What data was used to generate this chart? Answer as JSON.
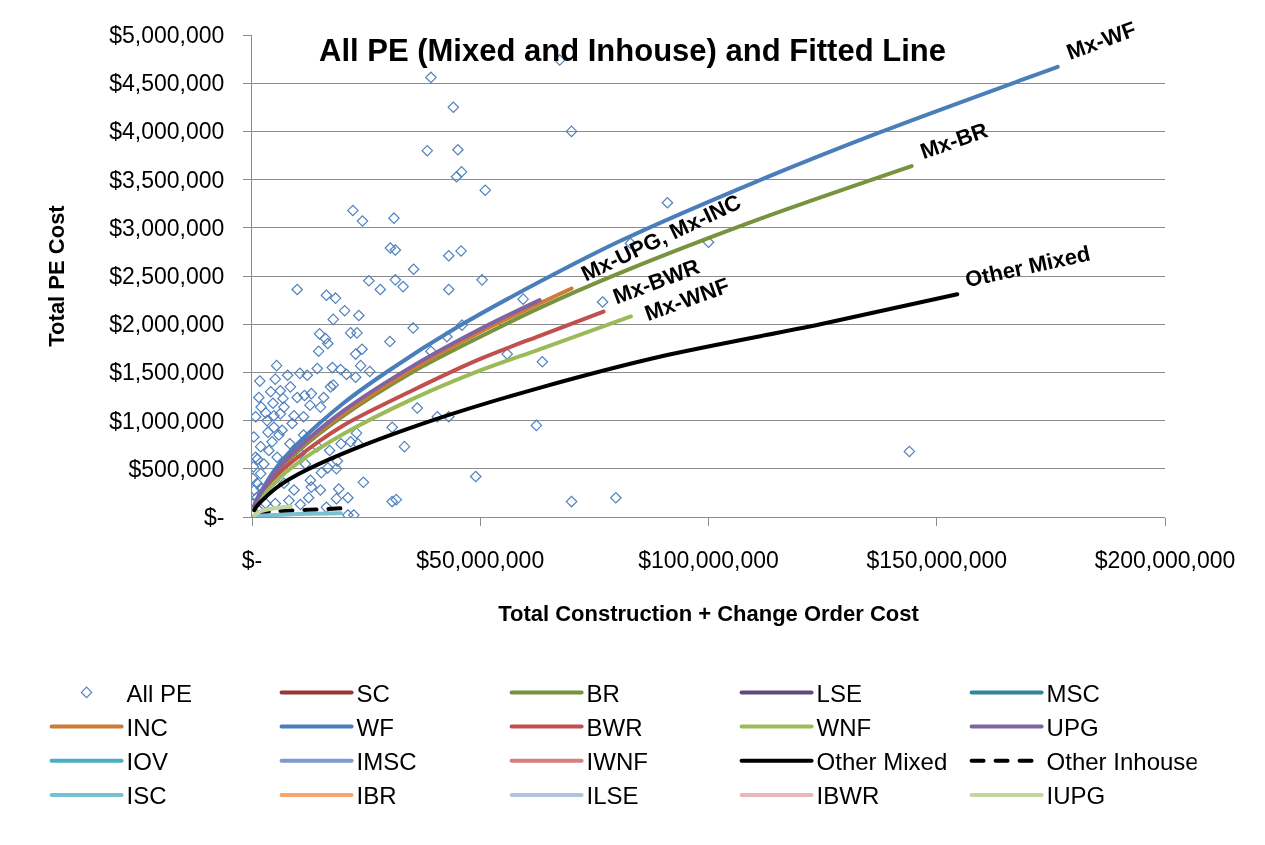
{
  "chart_data": {
    "type": "line",
    "title": "All PE (Mixed and Inhouse) and Fitted Line",
    "xlabel": "Total Construction + Change Order Cost",
    "ylabel": "Total PE Cost",
    "xlim": [
      0,
      200000000
    ],
    "ylim": [
      0,
      5000000
    ],
    "xticks": [
      {
        "value": 0,
        "label": "$-"
      },
      {
        "value": 50000000,
        "label": "$50,000,000"
      },
      {
        "value": 100000000,
        "label": "$100,000,000"
      },
      {
        "value": 150000000,
        "label": "$150,000,000"
      },
      {
        "value": 200000000,
        "label": "$200,000,000"
      }
    ],
    "yticks": [
      {
        "value": 0,
        "label": "$-"
      },
      {
        "value": 500000,
        "label": "$500,000"
      },
      {
        "value": 1000000,
        "label": "$1,000,000"
      },
      {
        "value": 1500000,
        "label": "$1,500,000"
      },
      {
        "value": 2000000,
        "label": "$2,000,000"
      },
      {
        "value": 2500000,
        "label": "$2,500,000"
      },
      {
        "value": 3000000,
        "label": "$3,000,000"
      },
      {
        "value": 3500000,
        "label": "$3,500,000"
      },
      {
        "value": 4000000,
        "label": "$4,000,000"
      },
      {
        "value": 4500000,
        "label": "$4,500,000"
      },
      {
        "value": 5000000,
        "label": "$5,000,000"
      }
    ],
    "grid": "y",
    "legend": "bottom",
    "line_style": "solid",
    "annotations": [
      {
        "text": "Mx-WF",
        "x": 176500000,
        "y": 4670000
      },
      {
        "text": "Mx-BR",
        "x": 144500000,
        "y": 3640000
      },
      {
        "text": "Mx-UPG, Mx-INC",
        "x": 70000000,
        "y": 2370000
      },
      {
        "text": "Mx-BWR",
        "x": 77000000,
        "y": 2130000
      },
      {
        "text": "Mx-WNF",
        "x": 83000000,
        "y": 2080000
      },
      {
        "text": "Other Mixed",
        "x": 154500000,
        "y": 2310000
      }
    ],
    "series": [
      {
        "name": "All PE",
        "type": "scatter",
        "marker": "diamond",
        "color": "#4f81bd",
        "x": [
          67400000,
          39200000,
          44100000,
          70000000,
          38400000,
          45100000,
          44800000,
          45900000,
          51100000,
          22100000,
          24200000,
          31100000,
          30300000,
          31400000,
          43100000,
          45800000,
          35400000,
          91000000,
          82900000,
          100000000,
          76800000,
          63600000,
          62300000,
          144000000,
          70000000,
          79700000,
          9900000,
          16300000,
          18300000,
          25600000,
          31400000,
          28100000,
          33100000,
          43100000,
          50400000,
          59400000,
          20300000,
          23400000,
          17800000,
          35300000,
          14800000,
          21600000,
          23000000,
          16100000,
          16600000,
          14600000,
          22700000,
          24100000,
          30200000,
          39200000,
          42700000,
          46000000,
          55900000,
          5400000,
          1700000,
          5100000,
          7800000,
          10500000,
          12100000,
          14300000,
          17600000,
          19400000,
          20700000,
          23800000,
          25800000,
          22700000,
          1500000,
          6800000,
          9900000,
          11500000,
          3000000,
          4800000,
          7000000,
          12700000,
          15700000,
          17200000,
          17800000,
          30700000,
          36200000,
          40600000,
          43100000,
          33400000,
          49000000,
          24400000,
          19000000,
          21000000,
          18500000,
          30700000,
          31600000,
          15000000,
          15200000,
          18500000,
          16600000,
          12800000,
          13000000,
          12400000,
          10600000,
          21000000,
          22300000,
          16300000,
          21600000,
          22900000,
          23200000,
          19500000,
          14300000,
          17000000,
          10600000,
          18700000,
          8800000,
          4800000,
          3500000,
          6600000,
          5900000,
          8300000,
          3700000,
          800000,
          2600000,
          1900000,
          1100000,
          4800000,
          7000000,
          9200000,
          8100000,
          5100000,
          2000000,
          800000,
          400000,
          1900000,
          4400000,
          11300000,
          300000,
          500000,
          300000,
          1500000,
          3000000,
          5500000,
          11700000,
          3300000,
          6200000,
          9200000,
          11300000,
          4600000,
          15000000,
          13000000,
          8400000,
          6200000,
          4100000,
          500000,
          1000000,
          2000000,
          200000,
          1200000
        ],
        "values": [
          4740000,
          4560000,
          4250000,
          4000000,
          3800000,
          3810000,
          3530000,
          3580000,
          3390000,
          3180000,
          3070000,
          3100000,
          2790000,
          2770000,
          2710000,
          2760000,
          2570000,
          3260000,
          2840000,
          2850000,
          2230000,
          1610000,
          950000,
          680000,
          160000,
          200000,
          2360000,
          2300000,
          2270000,
          2450000,
          2460000,
          2360000,
          2390000,
          2360000,
          2460000,
          2260000,
          2140000,
          2090000,
          2050000,
          1960000,
          1900000,
          1910000,
          1910000,
          1850000,
          1800000,
          1720000,
          1690000,
          1740000,
          1820000,
          1720000,
          1870000,
          1990000,
          1690000,
          1570000,
          1410000,
          1430000,
          1470000,
          1490000,
          1470000,
          1540000,
          1550000,
          1530000,
          1480000,
          1570000,
          1510000,
          1450000,
          1240000,
          1230000,
          1240000,
          1260000,
          1080000,
          1050000,
          1140000,
          1160000,
          1240000,
          1350000,
          1370000,
          930000,
          1130000,
          1040000,
          1040000,
          730000,
          420000,
          360000,
          290000,
          200000,
          190000,
          160000,
          180000,
          280000,
          460000,
          500000,
          510000,
          380000,
          310000,
          200000,
          130000,
          20000,
          20000,
          100000,
          780000,
          870000,
          760000,
          760000,
          730000,
          690000,
          660000,
          580000,
          970000,
          930000,
          880000,
          900000,
          850000,
          760000,
          690000,
          620000,
          550000,
          450000,
          350000,
          380000,
          350000,
          280000,
          170000,
          140000,
          1140000,
          1040000,
          830000,
          730000,
          780000,
          850000,
          520000,
          280000,
          140000,
          70000,
          140000,
          620000,
          550000,
          1000000,
          1070000,
          1050000,
          1040000,
          1180000,
          1140000,
          1280000,
          1350000,
          1310000,
          1300000,
          50000,
          200000,
          300000,
          400000,
          600000
        ]
      },
      {
        "name": "SC",
        "color": "#953735",
        "values": [
          null
        ]
      },
      {
        "name": "BR",
        "color": "#77933c",
        "x": [
          500000,
          1000000,
          5000000,
          10000000,
          20000000,
          35000000,
          50000000,
          63000000,
          80000000,
          110500000,
          144500000
        ],
        "values": [
          100000,
          160000,
          440000,
          680000,
          1050000,
          1500000,
          1870000,
          2170000,
          2520000,
          3080000,
          3640000
        ]
      },
      {
        "name": "LSE",
        "color": "#604a7b",
        "values": [
          null
        ]
      },
      {
        "name": "MSC",
        "color": "#31859c",
        "values": [
          null
        ]
      },
      {
        "name": "INC",
        "color": "#d07a33",
        "x": [
          500000,
          1000000,
          5000000,
          10000000,
          20000000,
          35000000,
          50000000,
          70000000
        ],
        "values": [
          110000,
          160000,
          450000,
          700000,
          1070000,
          1530000,
          1920000,
          2370000
        ]
      },
      {
        "name": "WF",
        "color": "#4a7ebb",
        "x": [
          500000,
          1000000,
          5000000,
          10000000,
          20000000,
          30000000,
          45000000,
          63000000,
          80500000,
          110500000,
          137500000,
          176500000
        ],
        "values": [
          120000,
          180000,
          490000,
          760000,
          1180000,
          1520000,
          1970000,
          2440000,
          2860000,
          3480000,
          3990000,
          4670000
        ]
      },
      {
        "name": "BWR",
        "color": "#c0504d",
        "x": [
          500000,
          1000000,
          5000000,
          10000000,
          20000000,
          35000000,
          50000000,
          63000000,
          77000000
        ],
        "values": [
          100000,
          160000,
          410000,
          620000,
          950000,
          1310000,
          1640000,
          1880000,
          2130000
        ]
      },
      {
        "name": "WNF",
        "color": "#9bbb59",
        "x": [
          500000,
          1000000,
          5000000,
          10000000,
          20000000,
          35000000,
          50000000,
          63000000,
          83000000
        ],
        "values": [
          90000,
          130000,
          360000,
          560000,
          860000,
          1220000,
          1520000,
          1740000,
          2080000
        ]
      },
      {
        "name": "UPG",
        "color": "#8064a2",
        "x": [
          500000,
          1000000,
          5000000,
          10000000,
          20000000,
          35000000,
          50000000,
          63000000
        ],
        "values": [
          110000,
          170000,
          460000,
          710000,
          1100000,
          1560000,
          1950000,
          2250000
        ]
      },
      {
        "name": "IOV",
        "color": "#4bacc6",
        "values": [
          null
        ]
      },
      {
        "name": "IMSC",
        "color": "#7f9acf",
        "values": [
          null
        ]
      },
      {
        "name": "IWNF",
        "color": "#d4807e",
        "values": [
          null
        ]
      },
      {
        "name": "Other Mixed",
        "color": "#000000",
        "x": [
          500000,
          1000000,
          5000000,
          10000000,
          20000000,
          40000000,
          63000000,
          90000000,
          124500000,
          154500000
        ],
        "values": [
          70000,
          110000,
          290000,
          440000,
          660000,
          1010000,
          1340000,
          1670000,
          2000000,
          2310000
        ]
      },
      {
        "name": "Other Inhouse",
        "color": "#000000",
        "line_style": "dashed",
        "x": [
          1000000,
          5000000,
          10000000,
          15000000,
          19500000
        ],
        "values": [
          40000,
          60000,
          70000,
          80000,
          90000
        ]
      },
      {
        "name": "ISC",
        "color": "#78c0d4",
        "x": [
          500000,
          5000000,
          10000000,
          19500000
        ],
        "values": [
          10000,
          20000,
          30000,
          40000
        ]
      },
      {
        "name": "IBR",
        "color": "#f8a46e",
        "values": [
          null
        ]
      },
      {
        "name": "ILSE",
        "color": "#b3c2de",
        "values": [
          null
        ]
      },
      {
        "name": "IBWR",
        "color": "#e6b9b8",
        "values": [
          null
        ]
      },
      {
        "name": "IUPG",
        "color": "#c3d69b",
        "x": [
          500000,
          2000000,
          5000000,
          8500000
        ],
        "values": [
          20000,
          60000,
          90000,
          110000
        ]
      }
    ]
  }
}
